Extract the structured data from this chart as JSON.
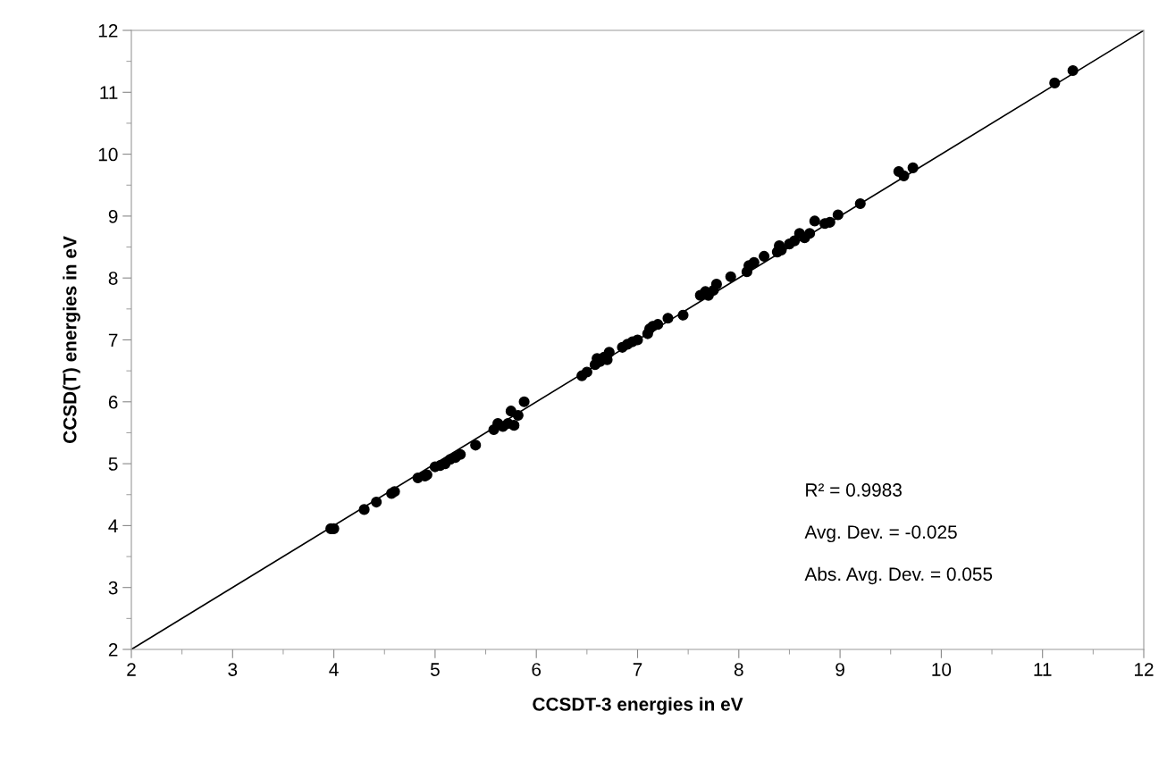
{
  "chart_data": {
    "type": "scatter",
    "xlabel": "CCSDT-3 energies in eV",
    "ylabel": "CCSD(T) energies in eV",
    "xlim": [
      2,
      12
    ],
    "ylim": [
      2,
      12
    ],
    "xticks": [
      2,
      3,
      4,
      5,
      6,
      7,
      8,
      9,
      10,
      11,
      12
    ],
    "yticks": [
      2,
      3,
      4,
      5,
      6,
      7,
      8,
      9,
      10,
      11,
      12
    ],
    "grid": false,
    "legend": false,
    "annotations": [
      "R² = 0.9983",
      "Avg. Dev. = -0.025",
      "Abs. Avg. Dev. = 0.055"
    ],
    "series": [
      {
        "type": "line",
        "color": "#000000",
        "marker": "none",
        "line_style": "solid",
        "x": [
          2,
          12
        ],
        "values": [
          2,
          12
        ]
      },
      {
        "color": "#000000",
        "marker": "circle",
        "x": [
          3.97,
          4.0,
          4.3,
          4.42,
          4.57,
          4.6,
          4.83,
          4.9,
          4.92,
          5.0,
          5.05,
          5.1,
          5.15,
          5.2,
          5.25,
          5.4,
          5.58,
          5.62,
          5.67,
          5.72,
          5.75,
          5.78,
          5.82,
          5.88,
          6.45,
          6.5,
          6.58,
          6.6,
          6.63,
          6.67,
          6.7,
          6.72,
          6.85,
          6.9,
          6.95,
          7.0,
          7.1,
          7.12,
          7.15,
          7.2,
          7.3,
          7.45,
          7.62,
          7.67,
          7.7,
          7.75,
          7.78,
          7.92,
          8.08,
          8.1,
          8.15,
          8.25,
          8.38,
          8.4,
          8.42,
          8.5,
          8.55,
          8.6,
          8.65,
          8.7,
          8.75,
          8.85,
          8.9,
          8.98,
          9.2,
          9.58,
          9.63,
          9.72,
          11.12,
          11.3
        ],
        "values": [
          3.95,
          3.95,
          4.26,
          4.38,
          4.52,
          4.55,
          4.77,
          4.8,
          4.82,
          4.95,
          4.97,
          5.0,
          5.07,
          5.1,
          5.15,
          5.3,
          5.55,
          5.65,
          5.6,
          5.65,
          5.85,
          5.62,
          5.78,
          6.0,
          6.42,
          6.48,
          6.6,
          6.7,
          6.65,
          6.72,
          6.68,
          6.8,
          6.88,
          6.93,
          6.97,
          7.0,
          7.1,
          7.18,
          7.22,
          7.25,
          7.35,
          7.4,
          7.72,
          7.78,
          7.72,
          7.8,
          7.9,
          8.02,
          8.1,
          8.2,
          8.25,
          8.35,
          8.42,
          8.52,
          8.45,
          8.55,
          8.6,
          8.72,
          8.65,
          8.72,
          8.92,
          8.88,
          8.9,
          9.02,
          9.2,
          9.72,
          9.65,
          9.78,
          11.15,
          11.35
        ]
      }
    ]
  }
}
